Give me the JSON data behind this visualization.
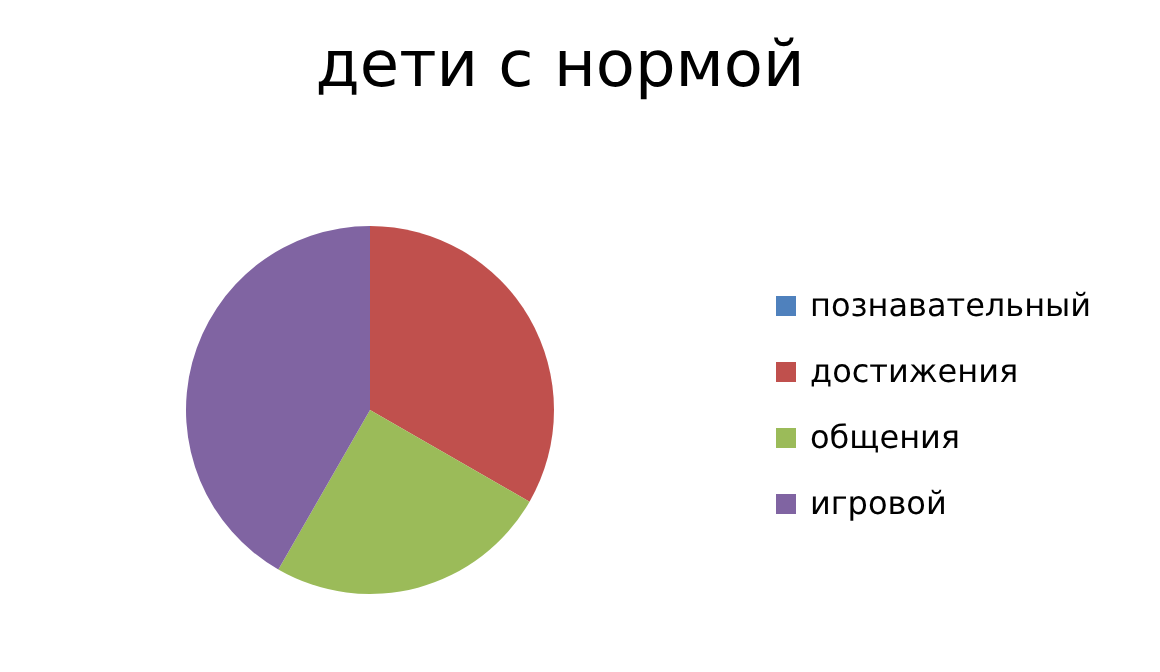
{
  "chart_data": {
    "type": "pie",
    "title": "дети с нормой",
    "categories": [
      "познавательный",
      "достижения",
      "общения",
      "игровой"
    ],
    "values": [
      0,
      33.3,
      25,
      41.7
    ],
    "colors": [
      "#4f81bd",
      "#c0504d",
      "#9bbb59",
      "#8064a2"
    ],
    "legend": "right"
  }
}
